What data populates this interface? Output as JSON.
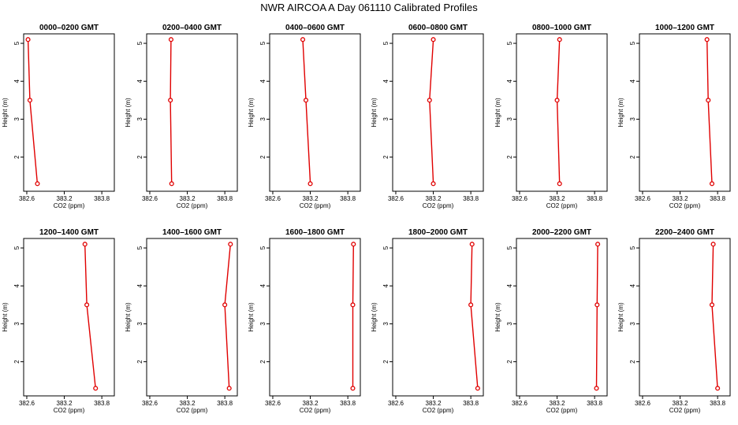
{
  "figure": {
    "title": "NWR AIRCOA A  Day 061110  Calibrated Profiles"
  },
  "colors": {
    "series": "#e00000",
    "axes": "#000000"
  },
  "chart_data": [
    {
      "type": "line",
      "title": "0000–0200 GMT",
      "xlabel": "CO2 (ppm)",
      "ylabel": "Height (m)",
      "xlim": [
        382.55,
        384.0
      ],
      "ylim": [
        1.1,
        5.25
      ],
      "xticks": [
        "382.6",
        "383.2",
        "383.8"
      ],
      "yticks": [
        "2",
        "3",
        "4",
        "5"
      ],
      "grid": false,
      "points": [
        {
          "x": 382.62,
          "y": 5.1
        },
        {
          "x": 382.65,
          "y": 3.5
        },
        {
          "x": 382.77,
          "y": 1.3
        }
      ]
    },
    {
      "type": "line",
      "title": "0200–0400 GMT",
      "xlabel": "CO2 (ppm)",
      "ylabel": "Height (m)",
      "xlim": [
        382.55,
        384.0
      ],
      "ylim": [
        1.1,
        5.25
      ],
      "xticks": [
        "382.6",
        "383.2",
        "383.8"
      ],
      "yticks": [
        "2",
        "3",
        "4",
        "5"
      ],
      "grid": false,
      "points": [
        {
          "x": 382.94,
          "y": 5.1
        },
        {
          "x": 382.93,
          "y": 3.5
        },
        {
          "x": 382.95,
          "y": 1.3
        }
      ]
    },
    {
      "type": "line",
      "title": "0400–0600 GMT",
      "xlabel": "CO2 (ppm)",
      "ylabel": "Height (m)",
      "xlim": [
        382.55,
        384.0
      ],
      "ylim": [
        1.1,
        5.25
      ],
      "xticks": [
        "382.6",
        "383.2",
        "383.8"
      ],
      "yticks": [
        "2",
        "3",
        "4",
        "5"
      ],
      "grid": false,
      "points": [
        {
          "x": 383.08,
          "y": 5.1
        },
        {
          "x": 383.13,
          "y": 3.5
        },
        {
          "x": 383.2,
          "y": 1.3
        }
      ]
    },
    {
      "type": "line",
      "title": "0600–0800 GMT",
      "xlabel": "CO2 (ppm)",
      "ylabel": "Height (m)",
      "xlim": [
        382.55,
        384.0
      ],
      "ylim": [
        1.1,
        5.25
      ],
      "xticks": [
        "382.6",
        "383.2",
        "383.8"
      ],
      "yticks": [
        "2",
        "3",
        "4",
        "5"
      ],
      "grid": false,
      "points": [
        {
          "x": 383.2,
          "y": 5.1
        },
        {
          "x": 383.14,
          "y": 3.5
        },
        {
          "x": 383.2,
          "y": 1.3
        }
      ]
    },
    {
      "type": "line",
      "title": "0800–1000 GMT",
      "xlabel": "CO2 (ppm)",
      "ylabel": "Height (m)",
      "xlim": [
        382.55,
        384.0
      ],
      "ylim": [
        1.1,
        5.25
      ],
      "xticks": [
        "382.6",
        "383.2",
        "383.8"
      ],
      "yticks": [
        "2",
        "3",
        "4",
        "5"
      ],
      "grid": false,
      "points": [
        {
          "x": 383.24,
          "y": 5.1
        },
        {
          "x": 383.2,
          "y": 3.5
        },
        {
          "x": 383.24,
          "y": 1.3
        }
      ]
    },
    {
      "type": "line",
      "title": "1000–1200 GMT",
      "xlabel": "CO2 (ppm)",
      "ylabel": "Height (m)",
      "xlim": [
        382.55,
        384.0
      ],
      "ylim": [
        1.1,
        5.25
      ],
      "xticks": [
        "382.6",
        "383.2",
        "383.8"
      ],
      "yticks": [
        "2",
        "3",
        "4",
        "5"
      ],
      "grid": false,
      "points": [
        {
          "x": 383.63,
          "y": 5.1
        },
        {
          "x": 383.65,
          "y": 3.5
        },
        {
          "x": 383.71,
          "y": 1.3
        }
      ]
    },
    {
      "type": "line",
      "title": "1200–1400 GMT",
      "xlabel": "CO2 (ppm)",
      "ylabel": "Height (m)",
      "xlim": [
        382.55,
        384.0
      ],
      "ylim": [
        1.1,
        5.25
      ],
      "xticks": [
        "382.6",
        "383.2",
        "383.8"
      ],
      "yticks": [
        "2",
        "3",
        "4",
        "5"
      ],
      "grid": false,
      "points": [
        {
          "x": 383.53,
          "y": 5.1
        },
        {
          "x": 383.56,
          "y": 3.5
        },
        {
          "x": 383.7,
          "y": 1.3
        }
      ]
    },
    {
      "type": "line",
      "title": "1400–1600 GMT",
      "xlabel": "CO2 (ppm)",
      "ylabel": "Height (m)",
      "xlim": [
        382.55,
        384.0
      ],
      "ylim": [
        1.1,
        5.25
      ],
      "xticks": [
        "382.6",
        "383.2",
        "383.8"
      ],
      "yticks": [
        "2",
        "3",
        "4",
        "5"
      ],
      "grid": false,
      "points": [
        {
          "x": 383.89,
          "y": 5.1
        },
        {
          "x": 383.8,
          "y": 3.5
        },
        {
          "x": 383.87,
          "y": 1.3
        }
      ]
    },
    {
      "type": "line",
      "title": "1600–1800 GMT",
      "xlabel": "CO2 (ppm)",
      "ylabel": "Height (m)",
      "xlim": [
        382.55,
        384.0
      ],
      "ylim": [
        1.1,
        5.25
      ],
      "xticks": [
        "382.6",
        "383.2",
        "383.8"
      ],
      "yticks": [
        "2",
        "3",
        "4",
        "5"
      ],
      "grid": false,
      "points": [
        {
          "x": 383.89,
          "y": 5.1
        },
        {
          "x": 383.88,
          "y": 3.5
        },
        {
          "x": 383.88,
          "y": 1.3
        }
      ]
    },
    {
      "type": "line",
      "title": "1800–2000 GMT",
      "xlabel": "CO2 (ppm)",
      "ylabel": "Height (m)",
      "xlim": [
        382.55,
        384.0
      ],
      "ylim": [
        1.1,
        5.25
      ],
      "xticks": [
        "382.6",
        "383.2",
        "383.8"
      ],
      "yticks": [
        "2",
        "3",
        "4",
        "5"
      ],
      "grid": false,
      "points": [
        {
          "x": 383.82,
          "y": 5.1
        },
        {
          "x": 383.8,
          "y": 3.5
        },
        {
          "x": 383.91,
          "y": 1.3
        }
      ]
    },
    {
      "type": "line",
      "title": "2000–2200 GMT",
      "xlabel": "CO2 (ppm)",
      "ylabel": "Height (m)",
      "xlim": [
        382.55,
        384.0
      ],
      "ylim": [
        1.1,
        5.25
      ],
      "xticks": [
        "382.6",
        "383.2",
        "383.8"
      ],
      "yticks": [
        "2",
        "3",
        "4",
        "5"
      ],
      "grid": false,
      "points": [
        {
          "x": 383.85,
          "y": 5.1
        },
        {
          "x": 383.84,
          "y": 3.5
        },
        {
          "x": 383.83,
          "y": 1.3
        }
      ]
    },
    {
      "type": "line",
      "title": "2200–2400 GMT",
      "xlabel": "CO2 (ppm)",
      "ylabel": "Height (m)",
      "xlim": [
        382.55,
        384.0
      ],
      "ylim": [
        1.1,
        5.25
      ],
      "xticks": [
        "382.6",
        "383.2",
        "383.8"
      ],
      "yticks": [
        "2",
        "3",
        "4",
        "5"
      ],
      "grid": false,
      "points": [
        {
          "x": 383.73,
          "y": 5.1
        },
        {
          "x": 383.71,
          "y": 3.5
        },
        {
          "x": 383.8,
          "y": 1.3
        }
      ]
    }
  ]
}
